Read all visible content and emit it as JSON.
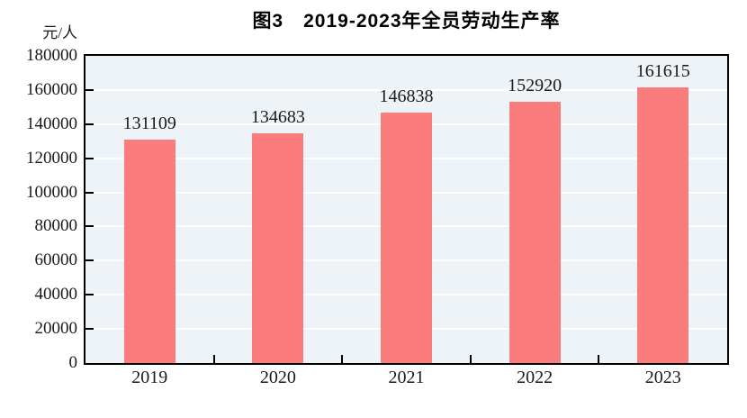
{
  "chart_data": {
    "type": "bar",
    "title": "图3　2019-2023年全员劳动生产率",
    "unit_label": "元/人",
    "categories": [
      "2019",
      "2020",
      "2021",
      "2022",
      "2023"
    ],
    "values": [
      131109,
      134683,
      146838,
      152920,
      161615
    ],
    "value_labels": [
      "131109",
      "134683",
      "146838",
      "152920",
      "161615"
    ],
    "ytick_labels": [
      "0",
      "20000",
      "40000",
      "60000",
      "80000",
      "100000",
      "120000",
      "140000",
      "160000",
      "180000"
    ],
    "xlabel": "",
    "ylabel": "元/人",
    "ylim": [
      0,
      180000
    ],
    "ytick_step": 20000,
    "grid": true,
    "legend_position": "none",
    "colors": {
      "bar": "#FA7C7C",
      "plot_background": "#EDF3F7",
      "gridline": "#FFFFFF",
      "axis": "#000000",
      "text": "#1A1A1A",
      "page_background": "#FFFFFF"
    }
  }
}
